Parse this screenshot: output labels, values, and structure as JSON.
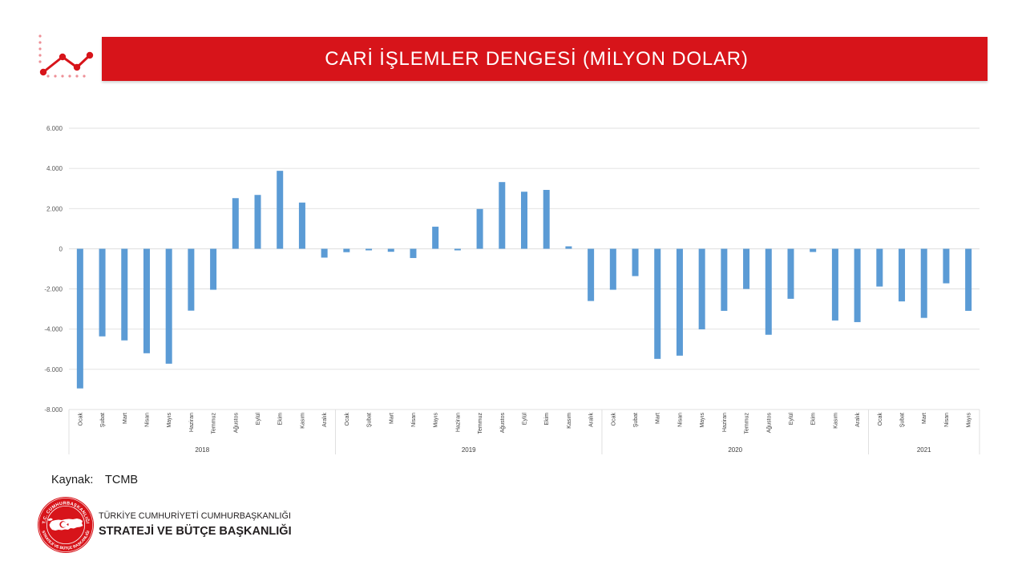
{
  "header": {
    "icon": "line-chart-icon"
  },
  "colors": {
    "header_bg": "#d7141a",
    "header_text": "#ffffff",
    "bar": "#5b9bd5",
    "gridline": "#d9d9d9"
  },
  "chart_data": {
    "type": "bar",
    "title": "CARİ İŞLEMLER DENGESİ (MİLYON DOLAR)",
    "ylim": [
      -8000,
      6000
    ],
    "y_ticks": [
      6000,
      4000,
      2000,
      0,
      -2000,
      -4000,
      -6000,
      -8000
    ],
    "y_tick_labels": [
      "6.000",
      "4.000",
      "2.000",
      "0",
      "-2.000",
      "-4.000",
      "-6.000",
      "-8.000"
    ],
    "grid": true,
    "legend": "none",
    "groups": [
      {
        "label": "2018",
        "categories": [
          "Ocak",
          "Şubat",
          "Mart",
          "Nisan",
          "Mayıs",
          "Haziran",
          "Temmuz",
          "Ağustos",
          "Eylül",
          "Ekim",
          "Kasım",
          "Aralık"
        ],
        "values": [
          -6950,
          -4360,
          -4560,
          -5200,
          -5720,
          -3080,
          -2040,
          2520,
          2680,
          3880,
          2300,
          -440
        ]
      },
      {
        "label": "2019",
        "categories": [
          "Ocak",
          "Şubat",
          "Mart",
          "Nisan",
          "Mayıs",
          "Haziran",
          "Temmuz",
          "Ağustos",
          "Eylül",
          "Ekim",
          "Kasım",
          "Aralık"
        ],
        "values": [
          -170,
          -80,
          -150,
          -460,
          1100,
          -80,
          1980,
          3320,
          2840,
          2930,
          120,
          -2600
        ]
      },
      {
        "label": "2020",
        "categories": [
          "Ocak",
          "Şubat",
          "Mart",
          "Nisan",
          "Mayıs",
          "Haziran",
          "Temmuz",
          "Ağustos",
          "Eylül",
          "Ekim",
          "Kasım",
          "Aralık"
        ],
        "values": [
          -2040,
          -1360,
          -5480,
          -5320,
          -4010,
          -3090,
          -2000,
          -4280,
          -2490,
          -160,
          -3570,
          -3650
        ]
      },
      {
        "label": "2021",
        "categories": [
          "Ocak",
          "Şubat",
          "Mart",
          "Nisan",
          "Mayıs"
        ],
        "values": [
          -1880,
          -2620,
          -3440,
          -1720,
          -3090
        ]
      }
    ]
  },
  "source": {
    "label": "Kaynak:",
    "value": "TCMB"
  },
  "org": {
    "logo_icon": "sbb-seal-logo",
    "seal_top": "T.C. CUMHURBAŞKANLIĞI",
    "seal_bottom": "STRATEJİ VE BÜTÇE BAŞKANLIĞI",
    "line1": "TÜRKİYE CUMHURİYETİ CUMHURBAŞKANLIĞI",
    "line2": "STRATEJİ VE BÜTÇE BAŞKANLIĞI"
  }
}
